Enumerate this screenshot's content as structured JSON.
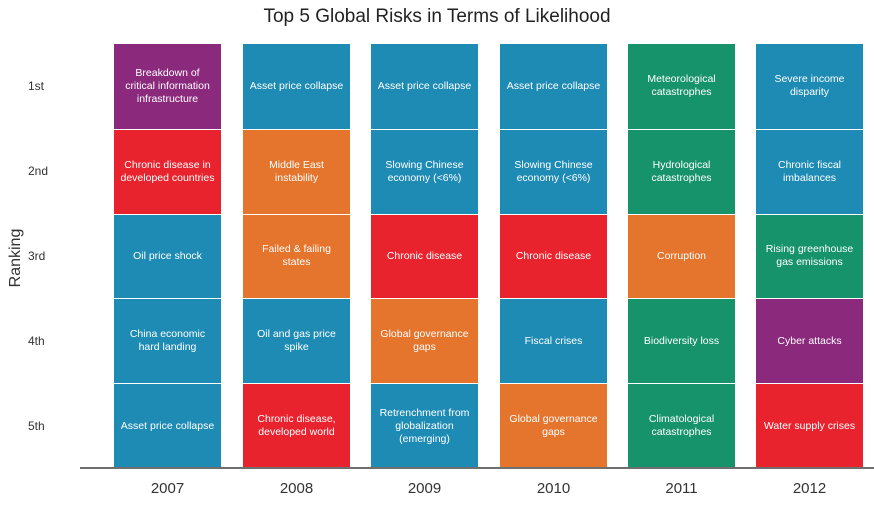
{
  "chart_data": {
    "type": "table",
    "title": "Top 5 Global Risks in Terms of Likelihood",
    "ylabel": "Ranking",
    "rank_labels": [
      "1st",
      "2nd",
      "3rd",
      "4th",
      "5th"
    ],
    "category_colors": {
      "economic": "#1e8bb5",
      "geopolitical": "#e5742d",
      "societal": "#e8232e",
      "environmental": "#16936a",
      "technological": "#8b2a7d"
    },
    "columns": [
      {
        "year": "2007",
        "risks": [
          {
            "label": "Breakdown of critical information infrastructure",
            "category": "technological"
          },
          {
            "label": "Chronic disease in developed countries",
            "category": "societal"
          },
          {
            "label": "Oil price shock",
            "category": "economic"
          },
          {
            "label": "China economic hard landing",
            "category": "economic"
          },
          {
            "label": "Asset price collapse",
            "category": "economic"
          }
        ]
      },
      {
        "year": "2008",
        "risks": [
          {
            "label": "Asset price collapse",
            "category": "economic"
          },
          {
            "label": "Middle East instability",
            "category": "geopolitical"
          },
          {
            "label": "Failed & failing states",
            "category": "geopolitical"
          },
          {
            "label": "Oil and gas price spike",
            "category": "economic"
          },
          {
            "label": "Chronic disease, developed world",
            "category": "societal"
          }
        ]
      },
      {
        "year": "2009",
        "risks": [
          {
            "label": "Asset price collapse",
            "category": "economic"
          },
          {
            "label": "Slowing Chinese economy (<6%)",
            "category": "economic"
          },
          {
            "label": "Chronic disease",
            "category": "societal"
          },
          {
            "label": "Global governance gaps",
            "category": "geopolitical"
          },
          {
            "label": "Retrenchment from globalization (emerging)",
            "category": "economic"
          }
        ]
      },
      {
        "year": "2010",
        "risks": [
          {
            "label": "Asset price collapse",
            "category": "economic"
          },
          {
            "label": "Slowing Chinese economy (<6%)",
            "category": "economic"
          },
          {
            "label": "Chronic disease",
            "category": "societal"
          },
          {
            "label": "Fiscal crises",
            "category": "economic"
          },
          {
            "label": "Global governance gaps",
            "category": "geopolitical"
          }
        ]
      },
      {
        "year": "2011",
        "risks": [
          {
            "label": "Meteorological catastrophes",
            "category": "environmental"
          },
          {
            "label": "Hydrological catastrophes",
            "category": "environmental"
          },
          {
            "label": "Corruption",
            "category": "geopolitical"
          },
          {
            "label": "Biodiversity loss",
            "category": "environmental"
          },
          {
            "label": "Climatological catastrophes",
            "category": "environmental"
          }
        ]
      },
      {
        "year": "2012",
        "risks": [
          {
            "label": "Severe income disparity",
            "category": "economic"
          },
          {
            "label": "Chronic fiscal imbalances",
            "category": "economic"
          },
          {
            "label": "Rising greenhouse gas emissions",
            "category": "environmental"
          },
          {
            "label": "Cyber attacks",
            "category": "technological"
          },
          {
            "label": "Water supply crises",
            "category": "societal"
          }
        ]
      }
    ]
  }
}
